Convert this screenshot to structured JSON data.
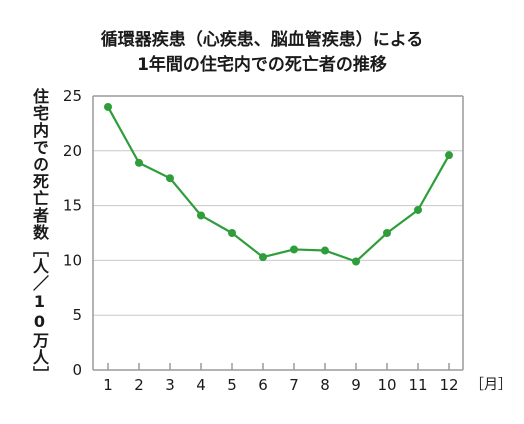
{
  "chart_data": {
    "type": "line",
    "title_line1": "循環器疾患（心疾患、脳血管疾患）による",
    "title_line2": "1年間の住宅内での死亡者の推移",
    "ylabel": "住宅内での死亡者数［人／10万人］",
    "xunit": "［月］",
    "categories": [
      "1",
      "2",
      "3",
      "4",
      "5",
      "6",
      "7",
      "8",
      "9",
      "10",
      "11",
      "12"
    ],
    "series": [
      {
        "values": [
          24.0,
          18.9,
          17.5,
          14.1,
          12.5,
          10.3,
          11.0,
          10.9,
          9.9,
          12.5,
          14.6,
          19.6
        ]
      }
    ],
    "ylim": [
      0,
      25
    ],
    "yticks": [
      "0",
      "5",
      "10",
      "15",
      "20",
      "25"
    ],
    "grid": true,
    "line_color": "#2e9d3a",
    "grid_color": "#c8c8c8",
    "axis_color": "#9a9a9a"
  }
}
